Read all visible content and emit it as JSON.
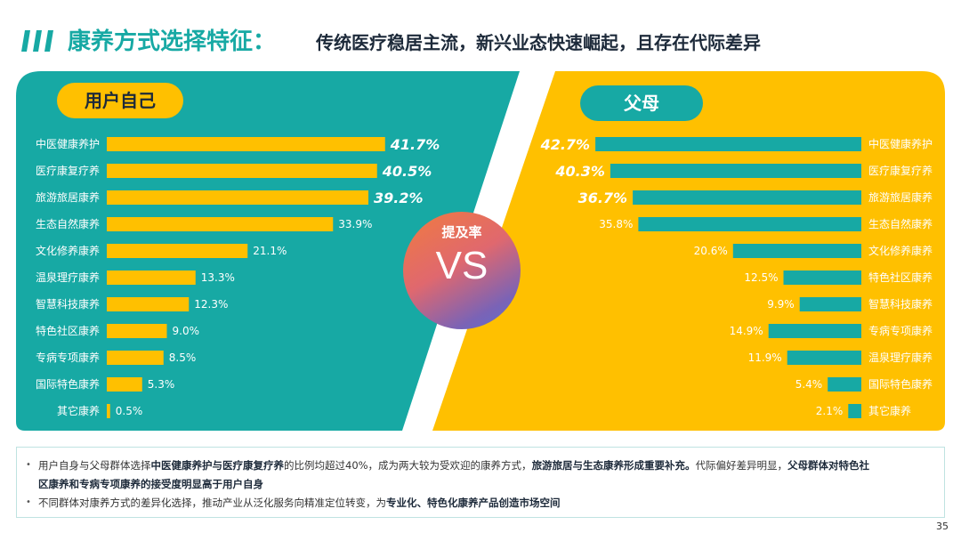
{
  "title": {
    "main": "康养方式选择特征：",
    "sub": "传统医疗稳居主流，新兴业态快速崛起，且存在代际差异"
  },
  "colors": {
    "teal": "#17a9a4",
    "yellow": "#ffc000",
    "dark": "#1d2a3a"
  },
  "center": {
    "label": "提及率",
    "vs": "VS"
  },
  "chart_data": [
    {
      "type": "bar",
      "orientation": "horizontal",
      "group": "用户自己",
      "categories": [
        "中医健康养护",
        "医疗康复疗养",
        "旅游旅居康养",
        "生态自然康养",
        "文化修养康养",
        "温泉理疗康养",
        "智慧科技康养",
        "特色社区康养",
        "专病专项康养",
        "国际特色康养",
        "其它康养"
      ],
      "values": [
        41.7,
        40.5,
        39.2,
        33.9,
        21.1,
        13.3,
        12.3,
        9.0,
        8.5,
        5.3,
        0.5
      ],
      "labels": [
        "41.7%",
        "40.5%",
        "39.2%",
        "33.9%",
        "21.1%",
        "13.3%",
        "12.3%",
        "9.0%",
        "8.5%",
        "5.3%",
        "0.5%"
      ],
      "highlight_top": 3
    },
    {
      "type": "bar",
      "orientation": "horizontal",
      "group": "父母",
      "categories": [
        "中医健康养护",
        "医疗康复疗养",
        "旅游旅居康养",
        "生态自然康养",
        "文化修养康养",
        "特色社区康养",
        "智慧科技康养",
        "专病专项康养",
        "温泉理疗康养",
        "国际特色康养",
        "其它康养"
      ],
      "values": [
        42.7,
        40.3,
        36.7,
        35.8,
        20.6,
        12.5,
        9.9,
        14.9,
        11.9,
        5.4,
        2.1
      ],
      "labels": [
        "42.7%",
        "40.3%",
        "36.7%",
        "35.8%",
        "20.6%",
        "12.5%",
        "9.9%",
        "14.9%",
        "11.9%",
        "5.4%",
        "2.1%"
      ],
      "highlight_top": 3
    }
  ],
  "notes": [
    {
      "segments": [
        {
          "t": "用户自身与父母群体选择",
          "b": false
        },
        {
          "t": "中医健康养护与医疗康复疗养",
          "b": true
        },
        {
          "t": "的比例均超过40%，成为两大较为受欢迎的康养方式，",
          "b": false
        },
        {
          "t": "旅游旅居与生态康养形成重要补充。",
          "b": true
        },
        {
          "t": "代际偏好差异明显，",
          "b": false
        },
        {
          "t": "父母群体对特色社",
          "b": true
        }
      ]
    },
    {
      "segments": [
        {
          "t": "区康养和专病专项康养的接受度明显高于用户自身",
          "b": true
        }
      ]
    },
    {
      "segments": [
        {
          "t": "不同群体对康养方式的差异化选择，推动产业从泛化服务向精准定位转变，为",
          "b": false
        },
        {
          "t": "专业化、特色化康养产品创造市场空间",
          "b": true
        }
      ]
    }
  ],
  "page_number": "35"
}
